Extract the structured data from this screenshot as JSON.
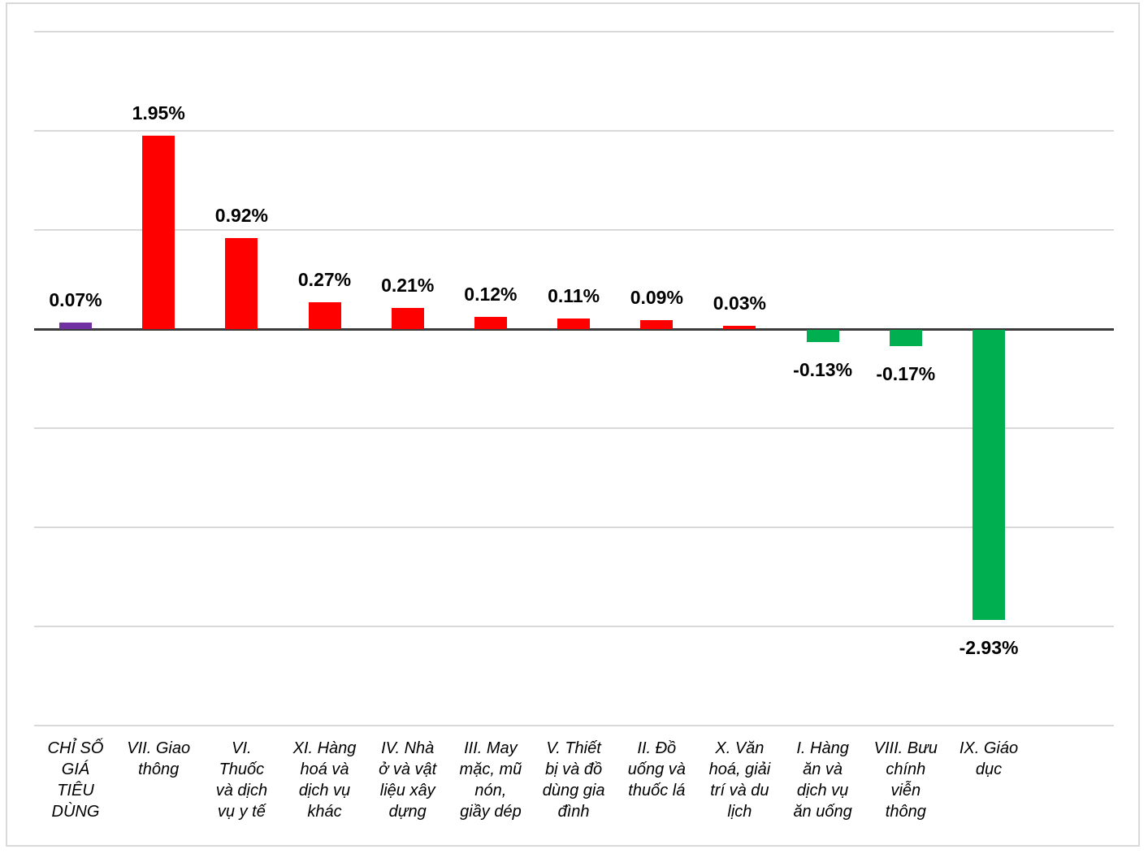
{
  "chart_data": {
    "type": "bar",
    "title": "",
    "xlabel": "",
    "ylabel": "",
    "legend": null,
    "grid": true,
    "y_axis": {
      "min": -4,
      "max": 3,
      "gridline_step_pct": 1,
      "tick_labels_visible": false
    },
    "categories": [
      "CHỈ SỐ GIÁ TIÊU DÙNG",
      "VII. Giao thông",
      "VI. Thuốc và dịch vụ y tế",
      "XI. Hàng hoá và dịch vụ khác",
      "IV. Nhà ở và vật liệu xây dựng",
      "III. May mặc, mũ nón, giầy dép",
      "V. Thiết bị và đồ dùng gia đình",
      "II. Đồ uống và thuốc lá",
      "X. Văn hoá, giải trí và du lịch",
      "I. Hàng ăn và dịch vụ ăn uống",
      "VIII. Bưu chính viễn thông",
      "IX. Giáo dục"
    ],
    "category_label_lines": [
      [
        "CHỈ SỐ",
        "GIÁ",
        "TIÊU",
        "DÙNG"
      ],
      [
        "VII. Giao",
        "thông"
      ],
      [
        "VI.",
        "Thuốc",
        "và dịch",
        "vụ y tế"
      ],
      [
        "XI. Hàng",
        "hoá và",
        "dịch vụ",
        "khác"
      ],
      [
        "IV. Nhà",
        "ở và vật",
        "liệu xây",
        "dựng"
      ],
      [
        "III. May",
        "mặc, mũ",
        "nón,",
        "giầy dép"
      ],
      [
        "V. Thiết",
        "bị và đồ",
        "dùng gia",
        "đình"
      ],
      [
        "II. Đồ",
        "uống và",
        "thuốc lá"
      ],
      [
        "X. Văn",
        "hoá, giải",
        "trí và du",
        "lịch"
      ],
      [
        "I. Hàng",
        "ăn và",
        "dịch vụ",
        "ăn uống"
      ],
      [
        "VIII. Bưu",
        "chính",
        "viễn",
        "thông"
      ],
      [
        "IX. Giáo",
        "dục"
      ]
    ],
    "values": [
      0.07,
      1.95,
      0.92,
      0.27,
      0.21,
      0.12,
      0.11,
      0.09,
      0.03,
      -0.13,
      -0.17,
      -2.93
    ],
    "value_labels": [
      "0.07%",
      "1.95%",
      "0.92%",
      "0.27%",
      "0.21%",
      "0.12%",
      "0.11%",
      "0.09%",
      "0.03%",
      "-0.13%",
      "-0.17%",
      "-2.93%"
    ],
    "bar_colors": [
      "#7030A0",
      "#FF0000",
      "#FF0000",
      "#FF0000",
      "#FF0000",
      "#FF0000",
      "#FF0000",
      "#FF0000",
      "#FF0000",
      "#00B050",
      "#00B050",
      "#00B050"
    ]
  },
  "colors": {
    "total_bar": "#7030A0",
    "positive_bar": "#FF0000",
    "negative_bar": "#00B050",
    "gridline": "#D9D9D9",
    "zero_axis": "#3B3B3B",
    "chart_border": "#D9D9D9",
    "text": "#000000"
  }
}
